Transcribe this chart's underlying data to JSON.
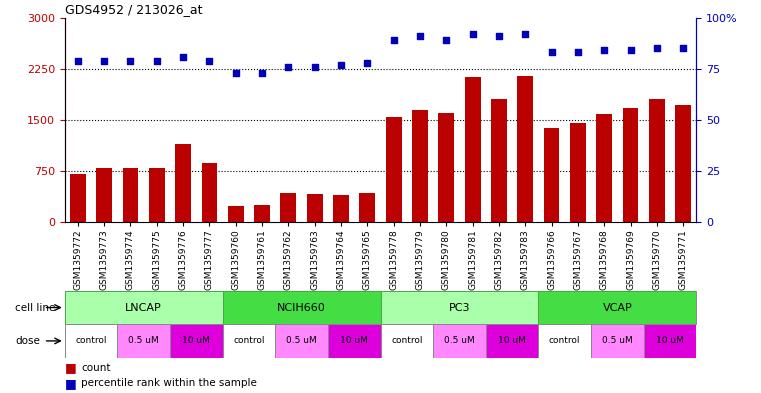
{
  "title": "GDS4952 / 213026_at",
  "samples": [
    "GSM1359772",
    "GSM1359773",
    "GSM1359774",
    "GSM1359775",
    "GSM1359776",
    "GSM1359777",
    "GSM1359760",
    "GSM1359761",
    "GSM1359762",
    "GSM1359763",
    "GSM1359764",
    "GSM1359765",
    "GSM1359778",
    "GSM1359779",
    "GSM1359780",
    "GSM1359781",
    "GSM1359782",
    "GSM1359783",
    "GSM1359766",
    "GSM1359767",
    "GSM1359768",
    "GSM1359769",
    "GSM1359770",
    "GSM1359771"
  ],
  "counts": [
    700,
    800,
    790,
    800,
    1150,
    870,
    230,
    250,
    430,
    410,
    400,
    430,
    1540,
    1650,
    1600,
    2130,
    1800,
    2150,
    1380,
    1460,
    1580,
    1680,
    1810,
    1720
  ],
  "percentile_ranks": [
    79,
    79,
    79,
    79,
    81,
    79,
    73,
    73,
    76,
    76,
    77,
    78,
    89,
    91,
    89,
    92,
    91,
    92,
    83,
    83,
    84,
    84,
    85,
    85
  ],
  "cell_lines": [
    "LNCAP",
    "NCIH660",
    "PC3",
    "VCAP"
  ],
  "cell_line_starts": [
    0,
    6,
    12,
    18
  ],
  "cell_line_ends": [
    6,
    12,
    18,
    24
  ],
  "cell_line_color": "#aaffaa",
  "cell_line_bright_color": "#44dd44",
  "cell_line_border_color": "#44aa44",
  "dose_labels": [
    "control",
    "0.5 uM",
    "10 uM",
    "control",
    "0.5 uM",
    "10 uM",
    "control",
    "0.5 uM",
    "10 uM",
    "control",
    "0.5 uM",
    "10 uM"
  ],
  "dose_starts": [
    0,
    2,
    4,
    6,
    8,
    10,
    12,
    14,
    16,
    18,
    20,
    22
  ],
  "dose_ends": [
    2,
    4,
    6,
    8,
    10,
    12,
    14,
    16,
    18,
    20,
    22,
    24
  ],
  "dose_colors": [
    "#ffffff",
    "#ff88ff",
    "#dd00dd",
    "#ffffff",
    "#ff88ff",
    "#dd00dd",
    "#ffffff",
    "#ff88ff",
    "#dd00dd",
    "#ffffff",
    "#ff88ff",
    "#dd00dd"
  ],
  "bar_color": "#bb0000",
  "dot_color": "#0000bb",
  "ylim_left": [
    0,
    3000
  ],
  "ylim_right": [
    0,
    100
  ],
  "yticks_left": [
    0,
    750,
    1500,
    2250,
    3000
  ],
  "yticks_right": [
    0,
    25,
    50,
    75,
    100
  ],
  "grid_values": [
    750,
    1500,
    2250
  ],
  "bg_color": "#ffffff"
}
